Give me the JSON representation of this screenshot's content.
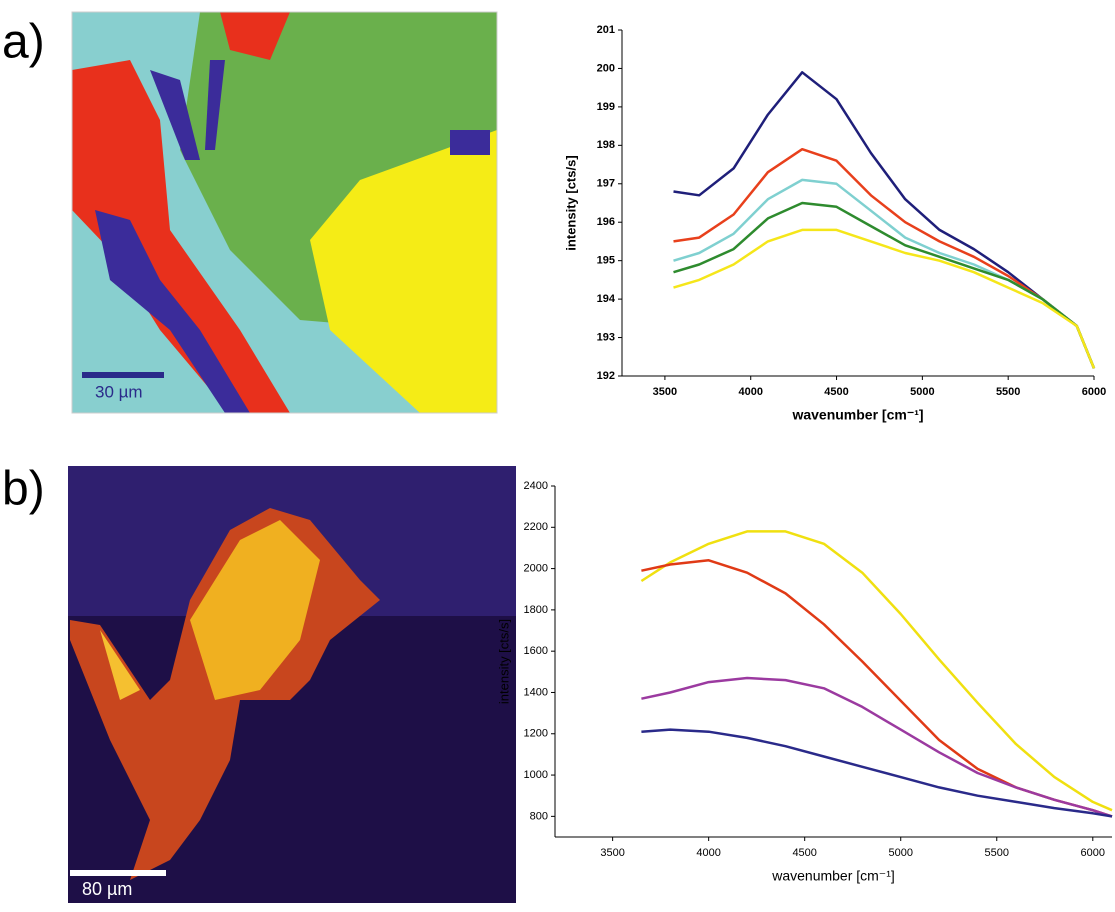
{
  "panels": [
    {
      "label": "a)",
      "scale_bar": "30 µm"
    },
    {
      "label": "b)",
      "scale_bar": "80 µm"
    }
  ],
  "chart_data": [
    {
      "type": "line",
      "y_label": "intensity  [cts/s]",
      "x_label": "wavenumber [cm⁻¹]",
      "x": [
        3550,
        3700,
        3900,
        4100,
        4300,
        4500,
        4700,
        4900,
        5100,
        5300,
        5500,
        5700,
        5900,
        6000
      ],
      "xlim": [
        3250,
        6000
      ],
      "xticks": [
        3500,
        4000,
        4500,
        5000,
        5500,
        6000
      ],
      "ylim": [
        192,
        201
      ],
      "yticks": [
        192,
        193,
        194,
        195,
        196,
        197,
        198,
        199,
        200,
        201
      ],
      "series": [
        {
          "color": "#1f1f7a",
          "values": [
            196.8,
            196.7,
            197.4,
            198.8,
            199.9,
            199.2,
            197.8,
            196.6,
            195.8,
            195.3,
            194.7,
            194.0,
            193.3,
            192.2
          ]
        },
        {
          "color": "#e8401c",
          "values": [
            195.5,
            195.6,
            196.2,
            197.3,
            197.9,
            197.6,
            196.7,
            196.0,
            195.5,
            195.1,
            194.6,
            194.0,
            193.3,
            192.2
          ]
        },
        {
          "color": "#7fd0d0",
          "values": [
            195.0,
            195.2,
            195.7,
            196.6,
            197.1,
            197.0,
            196.3,
            195.6,
            195.2,
            194.9,
            194.5,
            194.0,
            193.3,
            192.2
          ]
        },
        {
          "color": "#2e8b2e",
          "values": [
            194.7,
            194.9,
            195.3,
            196.1,
            196.5,
            196.4,
            195.9,
            195.4,
            195.1,
            194.8,
            194.5,
            194.0,
            193.3,
            192.2
          ]
        },
        {
          "color": "#f5e61a",
          "values": [
            194.3,
            194.5,
            194.9,
            195.5,
            195.8,
            195.8,
            195.5,
            195.2,
            195.0,
            194.7,
            194.3,
            193.9,
            193.3,
            192.2
          ]
        }
      ]
    },
    {
      "type": "line",
      "y_label": "intensity [cts/s]",
      "x_label": "wavenumber [cm⁻¹]",
      "x": [
        3650,
        3800,
        4000,
        4200,
        4400,
        4600,
        4800,
        5000,
        5200,
        5400,
        5600,
        5800,
        6000,
        6100
      ],
      "xlim": [
        3200,
        6100
      ],
      "xticks": [
        3500,
        4000,
        4500,
        5000,
        5500,
        6000
      ],
      "ylim": [
        700,
        2400
      ],
      "yticks": [
        800,
        1000,
        1200,
        1400,
        1600,
        1800,
        2000,
        2200,
        2400
      ],
      "series": [
        {
          "color": "#f0e010",
          "values": [
            1940,
            2030,
            2120,
            2180,
            2180,
            2120,
            1980,
            1780,
            1560,
            1350,
            1150,
            990,
            870,
            830
          ]
        },
        {
          "color": "#e03a16",
          "values": [
            1990,
            2020,
            2040,
            1980,
            1880,
            1730,
            1550,
            1360,
            1170,
            1030,
            940,
            880,
            830,
            800
          ]
        },
        {
          "color": "#9b3aa0",
          "values": [
            1370,
            1400,
            1450,
            1470,
            1460,
            1420,
            1330,
            1220,
            1110,
            1010,
            940,
            880,
            830,
            800
          ]
        },
        {
          "color": "#2a2a8a",
          "values": [
            1210,
            1220,
            1210,
            1180,
            1140,
            1090,
            1040,
            990,
            940,
            900,
            870,
            840,
            815,
            800
          ]
        }
      ]
    }
  ]
}
